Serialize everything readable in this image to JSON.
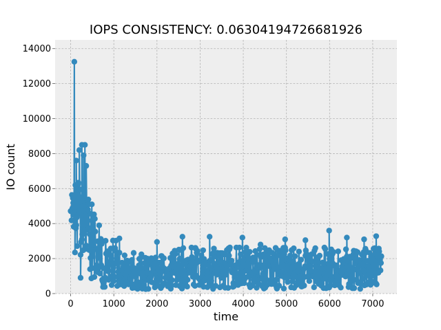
{
  "chart_data": {
    "type": "line",
    "title": "IOPS CONSISTENCY: 0.06304194726681926",
    "xlabel": "time",
    "ylabel": "IO count",
    "xlim": [
      -360,
      7560
    ],
    "ylim": [
      0,
      14500
    ],
    "xticks": [
      0,
      1000,
      2000,
      3000,
      4000,
      5000,
      6000,
      7000
    ],
    "yticks": [
      0,
      2000,
      4000,
      6000,
      8000,
      10000,
      12000,
      14000
    ],
    "grid": true,
    "style": "bmh",
    "series_color": "#348abd",
    "markers": true,
    "x_range": [
      0,
      7200
    ],
    "spikes": [
      {
        "x": 85,
        "y": 13250
      },
      {
        "x": 100,
        "y": 2350
      },
      {
        "x": 130,
        "y": 7600
      },
      {
        "x": 175,
        "y": 6250
      },
      {
        "x": 200,
        "y": 8200
      },
      {
        "x": 230,
        "y": 900
      },
      {
        "x": 260,
        "y": 8500
      },
      {
        "x": 300,
        "y": 7900
      },
      {
        "x": 330,
        "y": 8500
      },
      {
        "x": 360,
        "y": 7300
      },
      {
        "x": 420,
        "y": 5100
      },
      {
        "x": 490,
        "y": 5100
      },
      {
        "x": 1130,
        "y": 3150
      },
      {
        "x": 2000,
        "y": 2950
      },
      {
        "x": 2590,
        "y": 3250
      },
      {
        "x": 3220,
        "y": 3250
      },
      {
        "x": 3980,
        "y": 3200
      },
      {
        "x": 4400,
        "y": 2800
      },
      {
        "x": 4970,
        "y": 3100
      },
      {
        "x": 5440,
        "y": 3050
      },
      {
        "x": 5990,
        "y": 3600
      },
      {
        "x": 6400,
        "y": 3200
      },
      {
        "x": 6800,
        "y": 3100
      },
      {
        "x": 7080,
        "y": 3280
      }
    ]
  }
}
